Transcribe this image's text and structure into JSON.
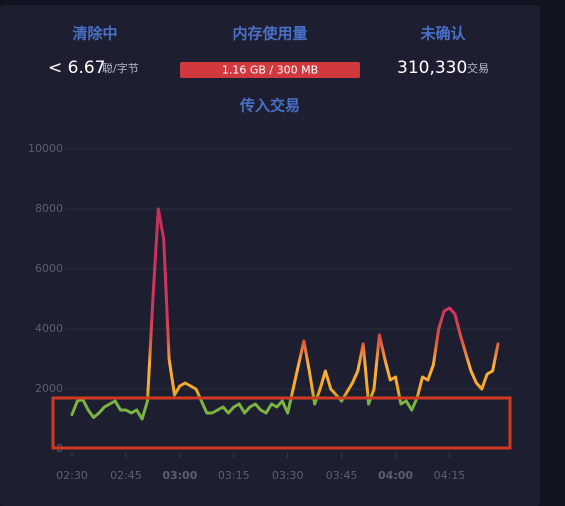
{
  "stats": {
    "fee": {
      "title": "清除中",
      "value": "< 6.67",
      "unit": "聪/字节"
    },
    "memory": {
      "title": "内存使用量",
      "value": "1.16 GB / 300 MB"
    },
    "unconfirmed": {
      "title": "未确认",
      "value": "310,330",
      "unit": "交易"
    }
  },
  "chart_data": {
    "type": "line",
    "title": "传入交易",
    "categories": [
      "02:30",
      null,
      null,
      null,
      null,
      null,
      null,
      null,
      null,
      null,
      "02:45",
      null,
      null,
      null,
      null,
      null,
      null,
      null,
      null,
      null,
      "03:00",
      null,
      null,
      null,
      null,
      null,
      null,
      null,
      null,
      null,
      "03:15",
      null,
      null,
      null,
      null,
      null,
      null,
      null,
      null,
      null,
      "03:30",
      null,
      null,
      null,
      null,
      null,
      null,
      null,
      null,
      null,
      "03:45",
      null,
      null,
      null,
      null,
      null,
      null,
      null,
      null,
      null,
      "04:00",
      null,
      null,
      null,
      null,
      null,
      null,
      null,
      null,
      null,
      "04:15",
      null,
      null,
      null,
      null,
      null,
      null,
      null,
      null,
      null
    ],
    "values": [
      1150,
      1600,
      1650,
      1300,
      1050,
      1200,
      1400,
      1500,
      1600,
      1300,
      1300,
      1200,
      1300,
      1000,
      1600,
      5000,
      8000,
      7000,
      3000,
      1800,
      2100,
      2200,
      2100,
      2000,
      1600,
      1200,
      1200,
      1300,
      1400,
      1200,
      1400,
      1500,
      1200,
      1400,
      1500,
      1300,
      1200,
      1500,
      1400,
      1600,
      1200,
      2000,
      2800,
      3600,
      2600,
      1500,
      2000,
      2600,
      2000,
      1800,
      1600,
      1900,
      2200,
      2600,
      3500,
      1500,
      2000,
      3800,
      3000,
      2300,
      2400,
      1500,
      1600,
      1300,
      1700,
      2400,
      2300,
      2800,
      4000,
      4600,
      4700,
      4500,
      3800,
      3200,
      2600,
      2200,
      2000,
      2500,
      2600,
      3500
    ],
    "ylim": [
      0,
      10000
    ],
    "yticks": [
      0,
      2000,
      4000,
      6000,
      8000,
      10000
    ],
    "grid": true,
    "color_stops": [
      {
        "value": 0,
        "color": "#7cb342"
      },
      {
        "value": 1650,
        "color": "#7cb342"
      },
      {
        "value": 1900,
        "color": "#f5a623"
      },
      {
        "value": 2800,
        "color": "#fbb13c"
      },
      {
        "value": 3600,
        "color": "#e0553f"
      },
      {
        "value": 4500,
        "color": "#d1365d"
      },
      {
        "value": 10000,
        "color": "#c42b5c"
      }
    ]
  }
}
